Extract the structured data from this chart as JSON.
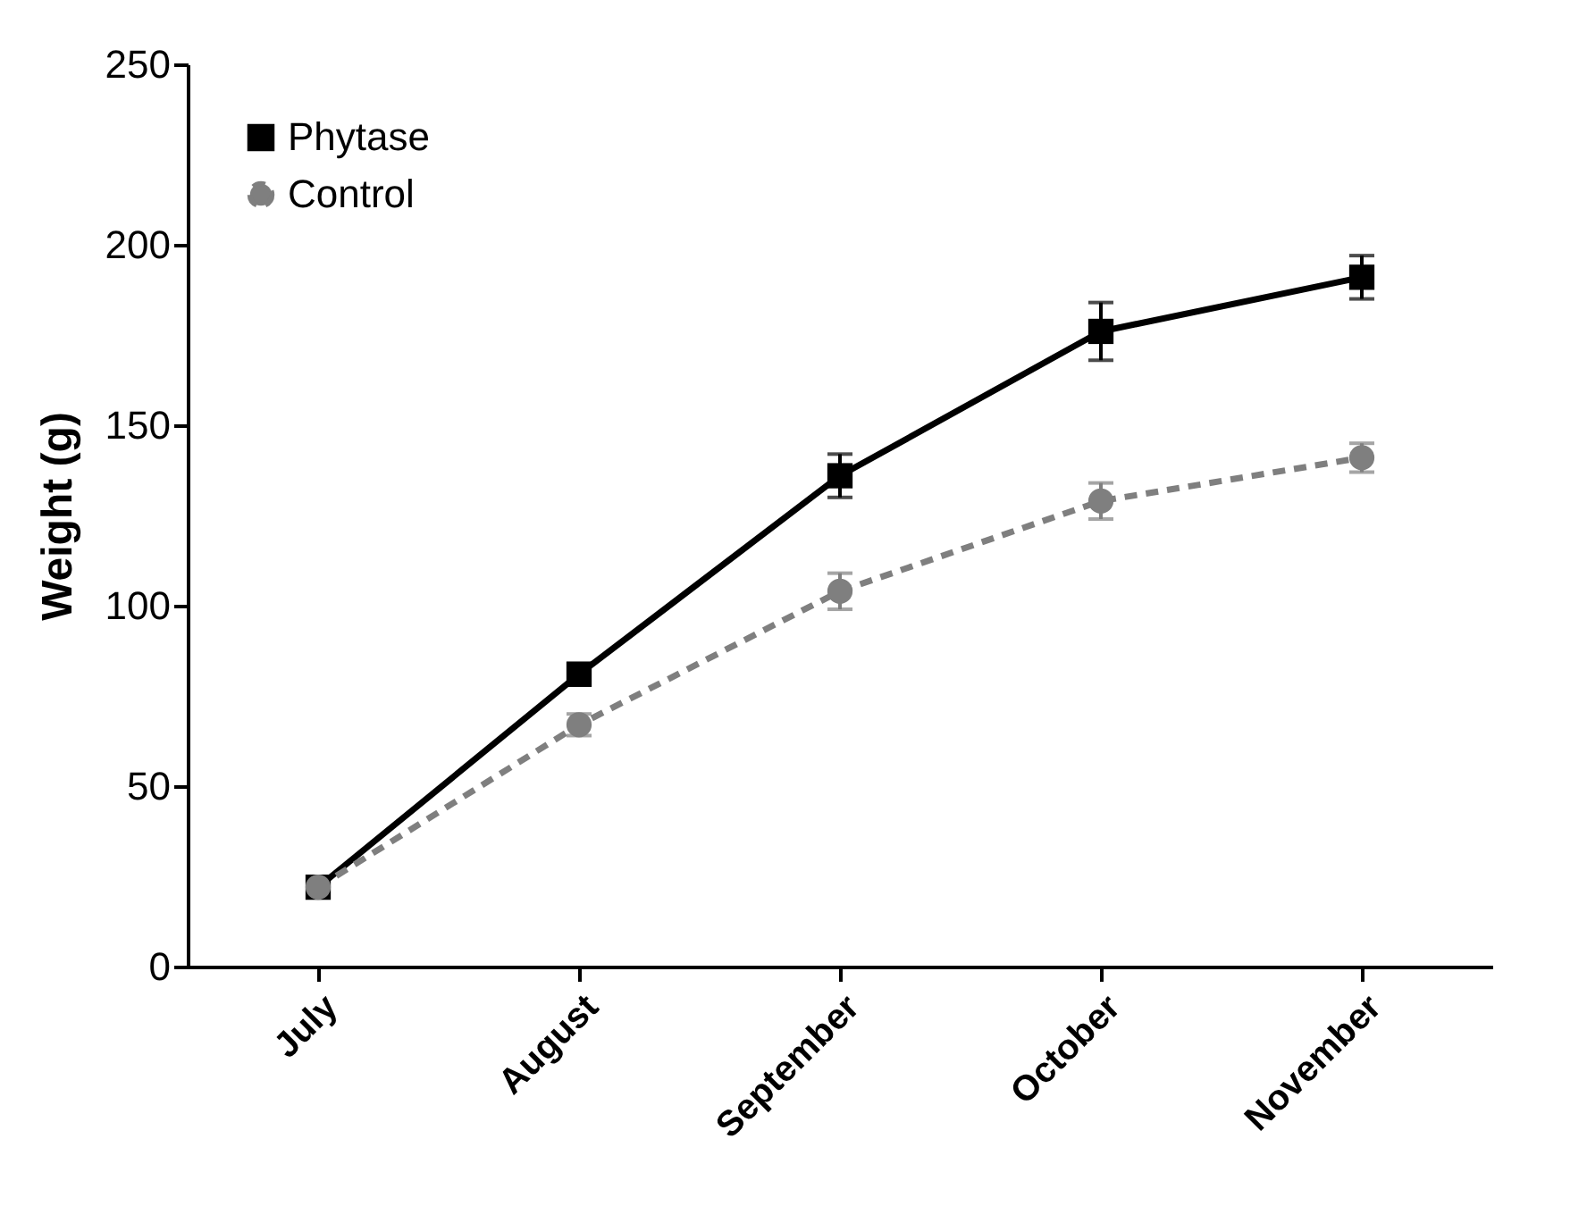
{
  "chart_data": {
    "type": "line",
    "ylabel": "Weight (g)",
    "categories": [
      "July",
      "August",
      "September",
      "October",
      "November"
    ],
    "series": [
      {
        "name": "Phytase",
        "color": "#000000",
        "marker": "square",
        "line_style": "solid",
        "values": [
          22,
          81,
          136,
          176,
          191
        ],
        "errors": [
          2,
          3,
          6,
          8,
          6
        ]
      },
      {
        "name": "Control",
        "color": "#7f7f7f",
        "marker": "circle",
        "line_style": "dashed",
        "values": [
          22,
          67,
          104,
          129,
          141
        ],
        "errors": [
          2,
          3,
          5,
          5,
          4
        ]
      }
    ],
    "ylim": [
      0,
      250
    ],
    "yticks": [
      0,
      50,
      100,
      150,
      200,
      250
    ],
    "grid": false,
    "legend": "top left"
  }
}
